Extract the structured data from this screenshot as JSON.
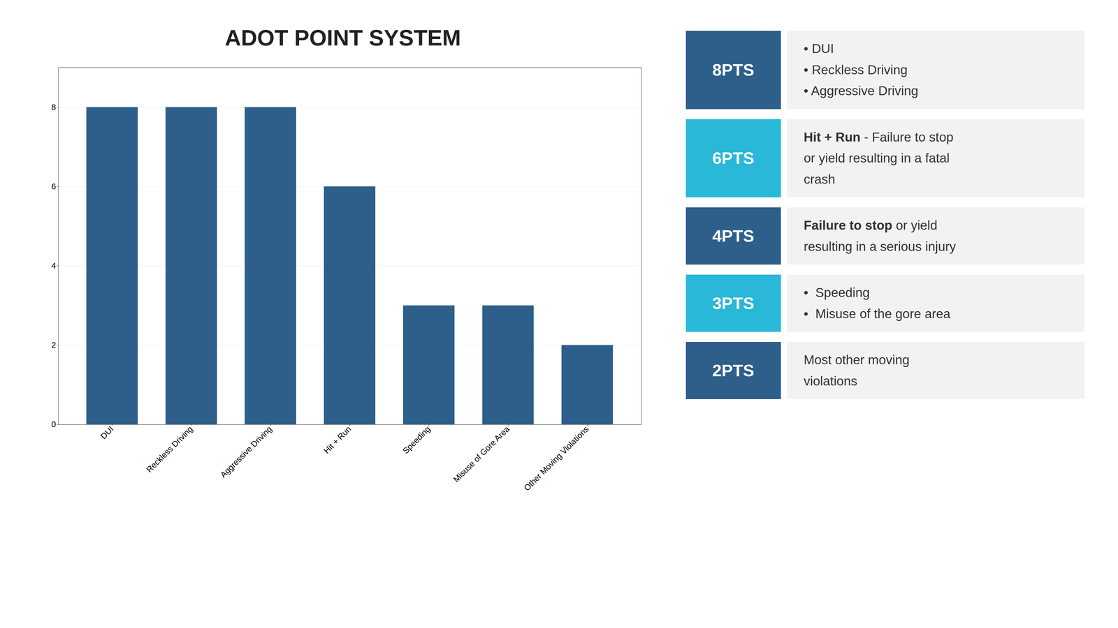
{
  "chart_data": {
    "type": "bar",
    "title": "ADOT POINT SYSTEM",
    "categories": [
      "DUI",
      "Reckless Driving",
      "Aggressive Driving",
      "Hit + Run",
      "Speeding",
      "Misuse of Gore Area",
      "Other Moving Violations"
    ],
    "values": [
      8,
      8,
      8,
      6,
      3,
      3,
      2
    ],
    "color": "#2d5f8a",
    "ylim": [
      0,
      9
    ],
    "yticks": [
      0,
      2,
      4,
      6,
      8
    ],
    "grid": true,
    "annotations": [
      {
        "label": "8PTS",
        "color": "#2d5f8a",
        "lines": [
          [
            {
              "text": "• DUI",
              "bold": false
            }
          ],
          [
            {
              "text": "• Reckless Driving",
              "bold": false
            }
          ],
          [
            {
              "text": "• Aggressive Driving",
              "bold": false
            }
          ]
        ]
      },
      {
        "label": "6PTS",
        "color": "#29b8d8",
        "lines": [
          [
            {
              "text": "Hit + Run",
              "bold": true
            },
            {
              "text": " - Failure to stop",
              "bold": false
            }
          ],
          [
            {
              "text": "or yield resulting in a fatal",
              "bold": false
            }
          ],
          [
            {
              "text": "crash",
              "bold": false
            }
          ]
        ]
      },
      {
        "label": "4PTS",
        "color": "#2d5f8a",
        "lines": [
          [
            {
              "text": "Failure to stop",
              "bold": true
            },
            {
              "text": " or yield",
              "bold": false
            }
          ],
          [
            {
              "text": "resulting in a serious injury",
              "bold": false
            }
          ]
        ]
      },
      {
        "label": "3PTS",
        "color": "#29b8d8",
        "lines": [
          [
            {
              "text": "•  Speeding",
              "bold": false
            }
          ],
          [
            {
              "text": "•  Misuse of the gore area",
              "bold": false
            }
          ]
        ]
      },
      {
        "label": "2PTS",
        "color": "#2d5f8a",
        "lines": [
          [
            {
              "text": "Most other moving",
              "bold": false
            }
          ],
          [
            {
              "text": "violations",
              "bold": false
            }
          ]
        ]
      }
    ]
  }
}
